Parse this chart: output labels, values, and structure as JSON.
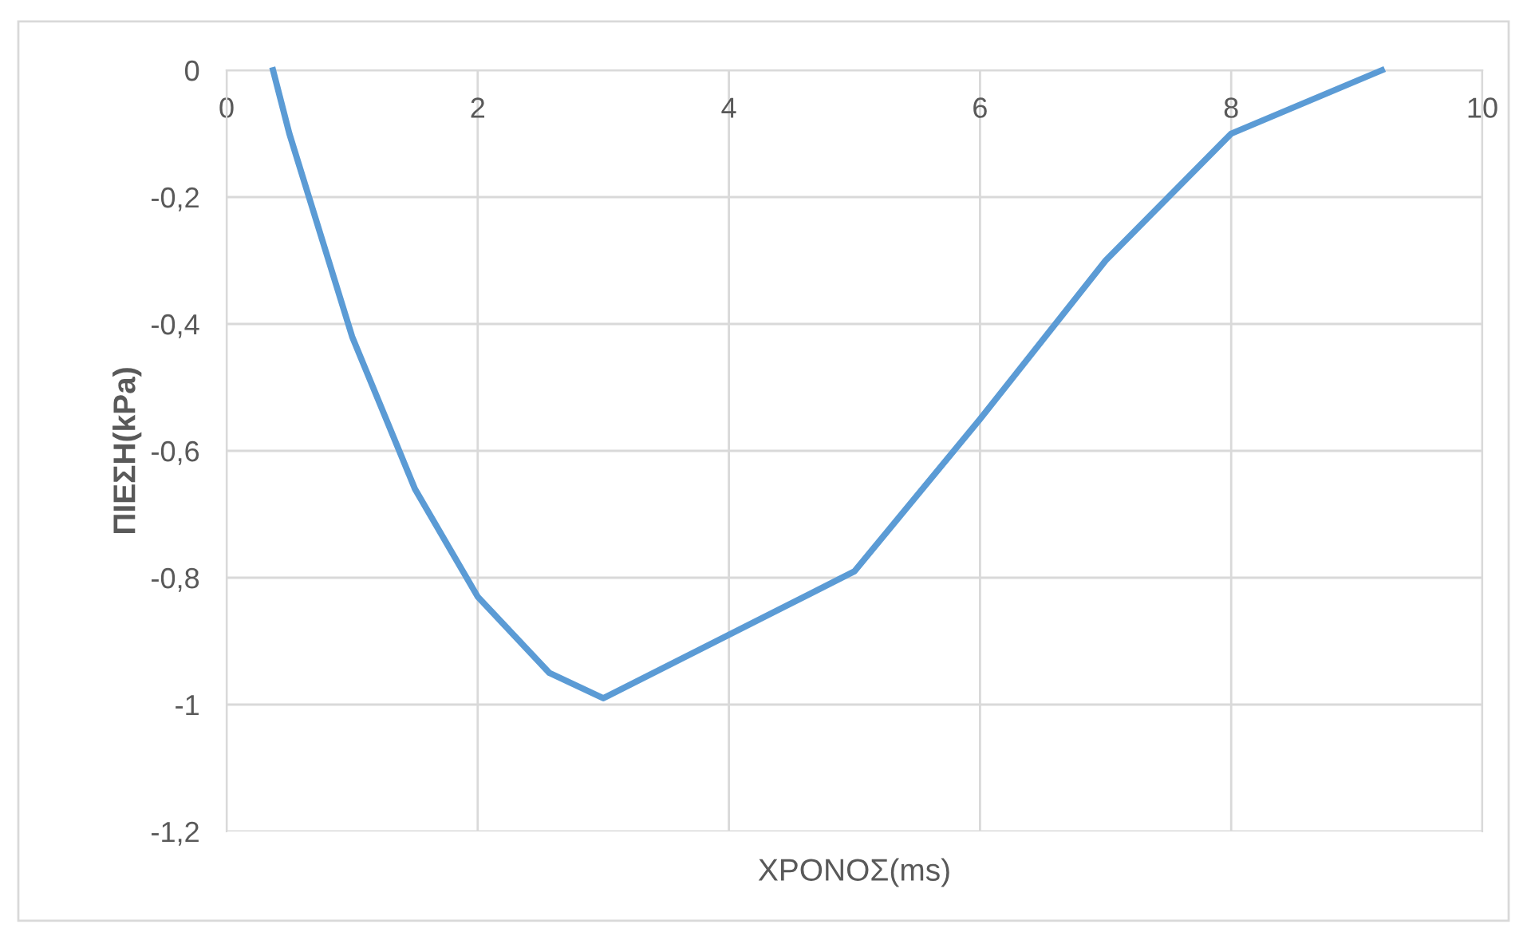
{
  "chart_data": {
    "type": "line",
    "xlabel": "ΧΡΟΝΟΣ(ms)",
    "ylabel": "ΠΙΕΣΗ(kPa)",
    "x": [
      0.37,
      0.5,
      1,
      1.5,
      2,
      2.57,
      3,
      5,
      6,
      7,
      8,
      9.2
    ],
    "series": [
      {
        "color": "#5b9bd5",
        "values": [
          0,
          -0.1,
          -0.42,
          -0.66,
          -0.83,
          -0.95,
          -0.99,
          -0.79,
          -0.55,
          -0.3,
          -0.1,
          0
        ]
      }
    ],
    "xlim": [
      0,
      10
    ],
    "xticks": [
      0,
      2,
      4,
      6,
      8,
      10
    ],
    "ylim": [
      -1.2,
      0
    ],
    "yticks": [
      {
        "value": -1.2,
        "label": "-1,2"
      },
      {
        "value": -1,
        "label": "-1"
      },
      {
        "value": -0.8,
        "label": "-0,8"
      },
      {
        "value": -0.6,
        "label": "-0,6"
      },
      {
        "value": -0.4,
        "label": "-0,4"
      },
      {
        "value": -0.2,
        "label": "-0,2"
      },
      0
    ],
    "grid": true,
    "marker": "none",
    "line_style": "solid"
  }
}
